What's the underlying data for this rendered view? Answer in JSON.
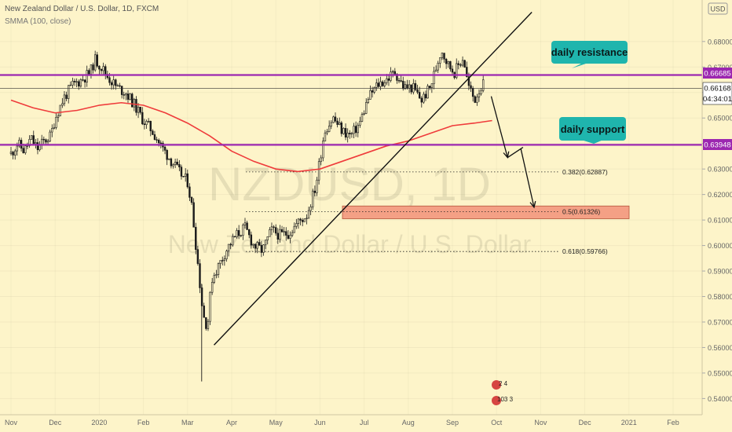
{
  "header": {
    "title": "New Zealand Dollar / U.S. Dollar, 1D, FXCM",
    "indicator": "SMMA (100, close)"
  },
  "currency_button": "USD",
  "watermark": {
    "symbol": "NZDUSD, 1D",
    "name": "New Zealand Dollar / U.S. Dollar"
  },
  "colors": {
    "background": "#fdf4c9",
    "level_line": "#9c27b0",
    "smma": "#ef3b3b",
    "fib_zone": "#f4a085",
    "callout": "#1fb5ad",
    "candle_up": "#1a1a1a"
  },
  "price_tags": {
    "resistance": "0.66685",
    "current": "0.66168",
    "countdown": "04:34:01",
    "support": "0.63948"
  },
  "callouts": {
    "resistance": "daily resistance",
    "support": "daily support"
  },
  "fib_labels": {
    "f382": "0.382(0.62887)",
    "f5": "0.5(0.61326)",
    "f618": "0.618(0.59766)"
  },
  "badge": {
    "top": "2  4",
    "bottom": "103  3"
  },
  "chart_data": {
    "type": "candlestick",
    "title": "New Zealand Dollar / U.S. Dollar, 1D, FXCM",
    "y_range": [
      0.5355,
      0.6935
    ],
    "y_ticks": [
      "0.68000",
      "0.67000",
      "0.66000",
      "0.65000",
      "0.64000",
      "0.63000",
      "0.62000",
      "0.61000",
      "0.60000",
      "0.59000",
      "0.58000",
      "0.57000",
      "0.56000",
      "0.55000",
      "0.54000"
    ],
    "x_ticks": [
      "Nov",
      "Dec",
      "2020",
      "Feb",
      "Mar",
      "Apr",
      "May",
      "Jun",
      "Jul",
      "Aug",
      "Sep",
      "Oct",
      "Nov",
      "Dec",
      "2021",
      "Feb"
    ],
    "x_range_months": [
      0.0,
      15.75
    ],
    "price_path": [
      [
        0.0,
        0.636
      ],
      [
        0.15,
        0.64
      ],
      [
        0.3,
        0.637
      ],
      [
        0.45,
        0.642
      ],
      [
        0.6,
        0.638
      ],
      [
        0.75,
        0.641
      ],
      [
        0.9,
        0.643
      ],
      [
        1.0,
        0.65
      ],
      [
        1.2,
        0.658
      ],
      [
        1.4,
        0.663
      ],
      [
        1.6,
        0.665
      ],
      [
        1.8,
        0.668
      ],
      [
        1.9,
        0.673
      ],
      [
        2.05,
        0.67
      ],
      [
        2.2,
        0.666
      ],
      [
        2.4,
        0.662
      ],
      [
        2.6,
        0.66
      ],
      [
        2.8,
        0.655
      ],
      [
        3.0,
        0.649
      ],
      [
        3.2,
        0.645
      ],
      [
        3.4,
        0.639
      ],
      [
        3.6,
        0.634
      ],
      [
        3.8,
        0.629
      ],
      [
        4.0,
        0.625
      ],
      [
        4.1,
        0.615
      ],
      [
        4.25,
        0.59
      ],
      [
        4.35,
        0.573
      ],
      [
        4.45,
        0.568
      ],
      [
        4.55,
        0.587
      ],
      [
        4.7,
        0.592
      ],
      [
        4.9,
        0.599
      ],
      [
        5.1,
        0.604
      ],
      [
        5.3,
        0.607
      ],
      [
        5.5,
        0.6
      ],
      [
        5.7,
        0.598
      ],
      [
        5.9,
        0.606
      ],
      [
        6.1,
        0.604
      ],
      [
        6.3,
        0.605
      ],
      [
        6.5,
        0.609
      ],
      [
        6.7,
        0.612
      ],
      [
        6.9,
        0.623
      ],
      [
        7.1,
        0.645
      ],
      [
        7.3,
        0.65
      ],
      [
        7.5,
        0.645
      ],
      [
        7.7,
        0.643
      ],
      [
        7.9,
        0.648
      ],
      [
        8.1,
        0.658
      ],
      [
        8.3,
        0.663
      ],
      [
        8.5,
        0.665
      ],
      [
        8.7,
        0.668
      ],
      [
        8.9,
        0.662
      ],
      [
        9.1,
        0.662
      ],
      [
        9.3,
        0.657
      ],
      [
        9.5,
        0.662
      ],
      [
        9.6,
        0.668
      ],
      [
        9.75,
        0.677
      ],
      [
        9.9,
        0.671
      ],
      [
        10.05,
        0.668
      ],
      [
        10.25,
        0.674
      ],
      [
        10.35,
        0.663
      ],
      [
        10.5,
        0.657
      ],
      [
        10.6,
        0.661
      ],
      [
        10.7,
        0.663
      ]
    ],
    "smma_path": [
      [
        0.0,
        0.657
      ],
      [
        0.5,
        0.654
      ],
      [
        1.0,
        0.652
      ],
      [
        1.5,
        0.653
      ],
      [
        2.0,
        0.655
      ],
      [
        2.5,
        0.656
      ],
      [
        3.0,
        0.655
      ],
      [
        3.5,
        0.652
      ],
      [
        4.0,
        0.648
      ],
      [
        4.5,
        0.643
      ],
      [
        5.0,
        0.637
      ],
      [
        5.5,
        0.633
      ],
      [
        6.0,
        0.63
      ],
      [
        6.5,
        0.629
      ],
      [
        7.0,
        0.63
      ],
      [
        7.5,
        0.633
      ],
      [
        8.0,
        0.636
      ],
      [
        8.5,
        0.639
      ],
      [
        9.0,
        0.641
      ],
      [
        9.5,
        0.644
      ],
      [
        10.0,
        0.647
      ],
      [
        10.5,
        0.648
      ],
      [
        10.9,
        0.649
      ]
    ],
    "levels": [
      {
        "name": "daily resistance",
        "price": 0.66685
      },
      {
        "name": "daily support",
        "price": 0.63948
      }
    ],
    "current_price": 0.66168,
    "trendline": {
      "from": [
        4.6,
        0.561
      ],
      "to": [
        11.8,
        0.6915
      ]
    },
    "fibonacci": [
      {
        "label": "0.382",
        "price": 0.62887
      },
      {
        "label": "0.5",
        "price": 0.61326
      },
      {
        "label": "0.618",
        "price": 0.59766
      }
    ],
    "projection_arrows": [
      {
        "from": [
          10.88,
          0.6585
        ],
        "to": [
          11.25,
          0.6345
        ]
      },
      {
        "from": [
          11.55,
          0.638
        ],
        "to": [
          11.85,
          0.615
        ]
      }
    ]
  }
}
